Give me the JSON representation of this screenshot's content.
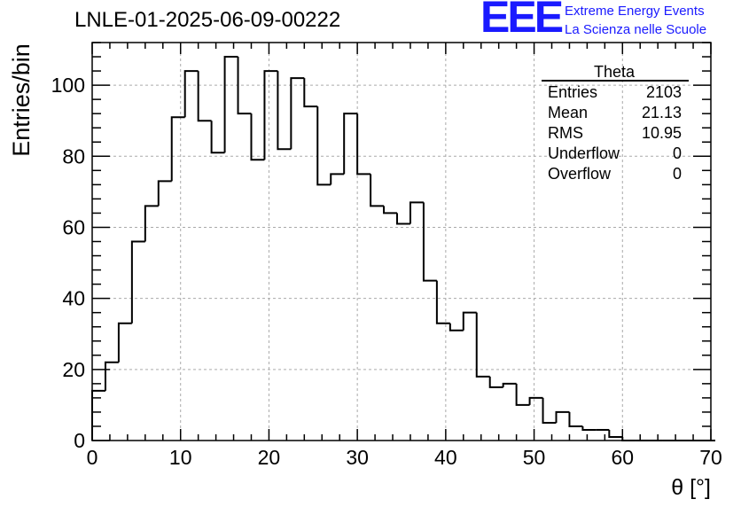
{
  "title": "LNLE-01-2025-06-09-00222",
  "logo": {
    "mark": "EEE",
    "line1": "Extreme Energy Events",
    "line2": "La Scienza nelle Scuole",
    "color": "#1a1aff"
  },
  "stats_box": {
    "name": "Theta",
    "rows": [
      {
        "label": "Entries",
        "value": "2103"
      },
      {
        "label": "Mean",
        "value": "21.13"
      },
      {
        "label": "RMS",
        "value": "10.95"
      },
      {
        "label": "Underflow",
        "value": "0"
      },
      {
        "label": "Overflow",
        "value": "0"
      }
    ]
  },
  "chart_data": {
    "type": "bar",
    "histogram": true,
    "title": "LNLE-01-2025-06-09-00222",
    "xlabel": "θ [°]",
    "ylabel": "Entries/bin",
    "xlim": [
      0,
      70
    ],
    "ylim": [
      0,
      112
    ],
    "bin_width": 1.5,
    "x_ticks": [
      0,
      10,
      20,
      30,
      40,
      50,
      60,
      70
    ],
    "y_ticks": [
      0,
      20,
      40,
      60,
      80,
      100
    ],
    "grid": true,
    "values": [
      14,
      22,
      33,
      56,
      66,
      73,
      91,
      104,
      90,
      81,
      108,
      92,
      79,
      104,
      82,
      102,
      94,
      72,
      75,
      92,
      75,
      66,
      64,
      61,
      67,
      45,
      33,
      31,
      36,
      18,
      15,
      16,
      10,
      12,
      5,
      8,
      4,
      3,
      3,
      1,
      0,
      0,
      0,
      0,
      0,
      0,
      0
    ]
  }
}
